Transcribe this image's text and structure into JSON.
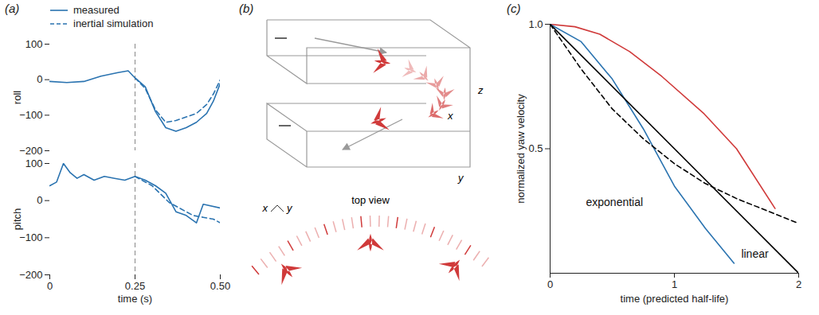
{
  "chart_data": [
    {
      "type": "line",
      "panel": "(a)",
      "ylabel": "roll",
      "xlim": [
        0,
        0.5
      ],
      "xticks": [
        0,
        0.25,
        {
          "value": 0.5,
          "label": "0.50"
        }
      ],
      "ylim": [
        -200,
        100
      ],
      "yticks": [
        -200,
        -100,
        0,
        100
      ],
      "tick_labels": "y",
      "legend": "top",
      "vline": 0.25,
      "series": [
        {
          "name": "measured",
          "color": "#2a73b0",
          "line_style": "solid",
          "x": [
            0,
            0.05,
            0.1,
            0.15,
            0.2,
            0.23,
            0.25,
            0.28,
            0.31,
            0.34,
            0.37,
            0.4,
            0.43,
            0.46,
            0.48,
            0.5
          ],
          "values": [
            -5,
            -8,
            -5,
            10,
            20,
            25,
            5,
            -20,
            -90,
            -135,
            -145,
            -135,
            -120,
            -95,
            -60,
            -10
          ]
        },
        {
          "name": "inertial simulation",
          "color": "#2a73b0",
          "line_style": "dashed",
          "x": [
            0.25,
            0.28,
            0.31,
            0.34,
            0.37,
            0.4,
            0.43,
            0.46,
            0.48,
            0.5
          ],
          "values": [
            5,
            -25,
            -85,
            -120,
            -115,
            -105,
            -95,
            -70,
            -40,
            0
          ]
        }
      ]
    },
    {
      "type": "line",
      "xlabel": "time (s)",
      "ylabel": "pitch",
      "xlim": [
        0,
        0.5
      ],
      "xticks": [
        0,
        0.25,
        {
          "value": 0.5,
          "label": "0.50"
        }
      ],
      "ylim": [
        -200,
        100
      ],
      "yticks": [
        -200,
        -100,
        0,
        100
      ],
      "vline": 0.25,
      "series": [
        {
          "name": "measured",
          "color": "#2a73b0",
          "line_style": "solid",
          "x": [
            0,
            0.02,
            0.04,
            0.06,
            0.08,
            0.1,
            0.13,
            0.16,
            0.19,
            0.22,
            0.25,
            0.28,
            0.31,
            0.34,
            0.37,
            0.4,
            0.43,
            0.45,
            0.5
          ],
          "values": [
            40,
            50,
            100,
            75,
            60,
            70,
            55,
            65,
            60,
            55,
            65,
            55,
            40,
            20,
            -30,
            -40,
            -60,
            -10,
            -20
          ]
        },
        {
          "name": "inertial simulation",
          "color": "#2a73b0",
          "line_style": "dashed",
          "x": [
            0.25,
            0.3,
            0.35,
            0.38,
            0.42,
            0.45,
            0.48,
            0.5
          ],
          "values": [
            65,
            40,
            -5,
            -20,
            -40,
            -45,
            -50,
            -60
          ]
        }
      ]
    },
    {
      "type": "line",
      "panel": "(c)",
      "xlabel": "time (predicted half-life)",
      "ylabel": "normalized yaw velocity",
      "xlim": [
        0,
        2
      ],
      "xticks": [
        0,
        1,
        2
      ],
      "ylim": [
        0,
        1
      ],
      "yticks": [
        0.5,
        {
          "value": 1,
          "label": "1.0"
        }
      ],
      "series": [
        {
          "color": "#d03a3a",
          "line_style": "solid",
          "x": [
            0,
            0.2,
            0.4,
            0.64,
            0.9,
            1.24,
            1.5,
            1.81
          ],
          "values": [
            1,
            0.99,
            0.96,
            0.89,
            0.79,
            0.64,
            0.5,
            0.26
          ]
        },
        {
          "color": "#2a73b0",
          "line_style": "solid",
          "x": [
            0,
            0.25,
            0.5,
            0.75,
            1,
            1.25,
            1.48
          ],
          "values": [
            1,
            0.93,
            0.78,
            0.58,
            0.35,
            0.18,
            0.04
          ]
        },
        {
          "name": "linear",
          "color": "#000000",
          "line_style": "solid",
          "x": [
            0,
            2
          ],
          "values": [
            1,
            0
          ]
        },
        {
          "name": "exponential",
          "color": "#000000",
          "line_style": "dashed",
          "x": [
            0,
            0.25,
            0.5,
            0.75,
            1,
            1.25,
            1.5,
            1.75,
            2
          ],
          "values": [
            1,
            0.82,
            0.66,
            0.54,
            0.44,
            0.36,
            0.3,
            0.25,
            0.2
          ]
        }
      ]
    }
  ],
  "diagram": {
    "panel": "(b)",
    "view_label": "top view",
    "axis_labels": [
      "x",
      "y",
      "z"
    ],
    "top_view_axis_labels": [
      "x",
      "y"
    ],
    "color": "#d03a3a"
  }
}
